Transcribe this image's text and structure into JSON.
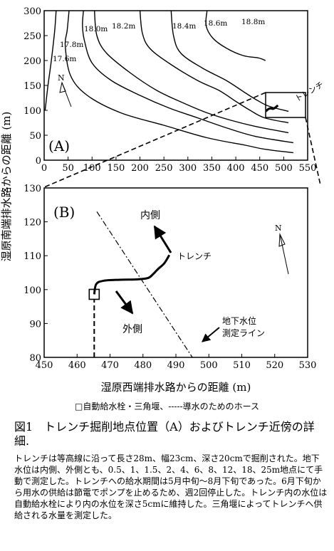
{
  "figure": {
    "y_axis_label": "湿原南端排水路からの距離 (m)",
    "x_axis_label": "湿原西端排水路からの距離 (m)",
    "north_label": "N"
  },
  "chart_data": [
    {
      "type": "line",
      "panel_label": "(A)",
      "x_ticks": [
        "0",
        "50",
        "100",
        "150",
        "200",
        "250",
        "300",
        "350",
        "400",
        "450",
        "500",
        "550"
      ],
      "y_ticks": [
        "0",
        "50",
        "100",
        "150",
        "200",
        "250",
        "300"
      ],
      "xlim": [
        0,
        550
      ],
      "ylim": [
        0,
        300
      ],
      "contour_labels": [
        "17.6m",
        "17.8m",
        "18.0m",
        "18.2m",
        "18.4m",
        "18.6m",
        "18.8m"
      ],
      "trench_label": "トレンチ",
      "series": [
        {
          "name": "17.6m",
          "points": [
            [
              25,
              300
            ],
            [
              22,
              260
            ],
            [
              15,
              200
            ],
            [
              8,
              150
            ],
            [
              2,
              100
            ]
          ]
        },
        {
          "name": "17.8m",
          "points": [
            [
              52,
              300
            ],
            [
              48,
              260
            ],
            [
              44,
              230
            ],
            [
              55,
              170
            ],
            [
              90,
              130
            ],
            [
              160,
              95
            ],
            [
              250,
              70
            ],
            [
              340,
              45
            ],
            [
              420,
              30
            ],
            [
              460,
              22
            ],
            [
              520,
              15
            ]
          ]
        },
        {
          "name": "18.0m",
          "points": [
            [
              82,
              300
            ],
            [
              80,
              270
            ],
            [
              84,
              240
            ],
            [
              100,
              195
            ],
            [
              140,
              160
            ],
            [
              200,
              130
            ],
            [
              260,
              105
            ],
            [
              320,
              85
            ],
            [
              380,
              65
            ],
            [
              440,
              48
            ],
            [
              520,
              35
            ]
          ]
        },
        {
          "name": "18.2m",
          "points": [
            [
              105,
              300
            ],
            [
              110,
              250
            ],
            [
              130,
              215
            ],
            [
              180,
              175
            ],
            [
              235,
              140
            ],
            [
              290,
              115
            ],
            [
              340,
              95
            ],
            [
              390,
              80
            ],
            [
              440,
              68
            ],
            [
              510,
              55
            ]
          ]
        },
        {
          "name": "18.4m",
          "points": [
            [
              200,
              300
            ],
            [
              205,
              255
            ],
            [
              220,
              225
            ],
            [
              260,
              195
            ],
            [
              320,
              160
            ],
            [
              365,
              140
            ],
            [
              400,
              118
            ],
            [
              430,
              100
            ],
            [
              460,
              85
            ],
            [
              510,
              75
            ]
          ]
        },
        {
          "name": "18.6m",
          "points": [
            [
              265,
              300
            ],
            [
              270,
              250
            ],
            [
              285,
              215
            ],
            [
              330,
              185
            ],
            [
              380,
              160
            ],
            [
              420,
              135
            ],
            [
              445,
              120
            ],
            [
              470,
              108
            ],
            [
              510,
              98
            ]
          ]
        },
        {
          "name": "18.8m",
          "points": [
            [
              340,
              300
            ],
            [
              338,
              270
            ],
            [
              352,
              245
            ],
            [
              380,
              225
            ],
            [
              415,
              210
            ],
            [
              448,
              205
            ],
            [
              462,
              200
            ]
          ]
        }
      ],
      "trench_points": [
        [
          463,
          98
        ],
        [
          467,
          102
        ],
        [
          472,
          104
        ],
        [
          478,
          103
        ],
        [
          483,
          106
        ],
        [
          488,
          110
        ]
      ]
    },
    {
      "type": "line",
      "panel_label": "(B)",
      "x_ticks": [
        "450",
        "460",
        "470",
        "480",
        "490",
        "500",
        "510",
        "520",
        "530"
      ],
      "y_ticks": [
        "80",
        "90",
        "100",
        "110",
        "120",
        "130"
      ],
      "xlim": [
        450,
        530
      ],
      "ylim": [
        80,
        130
      ],
      "inside_label": "内側",
      "outside_label": "外側",
      "trench_label": "トレンチ",
      "measure_line_label": "地下水位\n測定ライン",
      "trench_points": [
        [
          465.2,
          98.6
        ],
        [
          465.8,
          101.6
        ],
        [
          468,
          102.6
        ],
        [
          473,
          102.9
        ],
        [
          478,
          103
        ],
        [
          481.5,
          103.4
        ],
        [
          483,
          104.5
        ],
        [
          484.5,
          106
        ],
        [
          486.5,
          107.8
        ],
        [
          488,
          110.2
        ]
      ],
      "hose_points": [
        [
          465.2,
          80
        ],
        [
          465.2,
          97
        ]
      ],
      "measurement_line": [
        [
          466,
          123
        ],
        [
          495,
          80
        ]
      ]
    }
  ],
  "captions": {
    "legend": "□自動給水栓・三角堰、-----導水のためのホース",
    "title": "図1　トレンチ掘削地点位置（A）およびトレンチ近傍の詳細.",
    "body": "トレンチは等高線に沿って長さ28m、幅23cm、深さ20cmで掘削された。地下水位は内側、外側とも、0.5、1、1.5、2、4、6、8、12、18、25m地点にて手動で測定した。トレンチへの給水期間は5月中旬～8月下旬であった。6月下旬から用水の供給は節電でポンプを止めるため、週2回停止した。トレンチ内の水位は自動給水栓により内の水位を深さ5cmに維持した。三角堰によってトレンチへ供給される水量を測定した。"
  }
}
